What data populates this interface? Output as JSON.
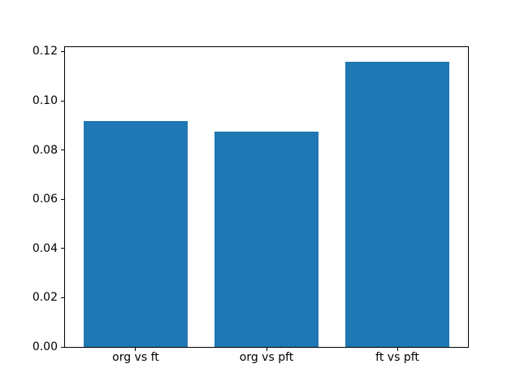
{
  "chart_data": {
    "type": "bar",
    "title": "",
    "xlabel": "",
    "ylabel": "",
    "categories": [
      "org vs ft",
      "org vs pft",
      "ft vs pft"
    ],
    "values": [
      0.0917,
      0.0874,
      0.116
    ],
    "bar_color": "#1f77b4",
    "bar_width": 0.8,
    "axis_color": "#000000",
    "background_color": "#ffffff",
    "ytick_labels": [
      "0.00",
      "0.02",
      "0.04",
      "0.06",
      "0.08",
      "0.10",
      "0.12"
    ],
    "ytick_values": [
      0.0,
      0.02,
      0.04,
      0.06,
      0.08,
      0.1,
      0.12
    ],
    "ylim": [
      0,
      0.1218
    ],
    "xlim": [
      -0.54,
      2.54
    ],
    "grid": false,
    "legend": "none"
  }
}
